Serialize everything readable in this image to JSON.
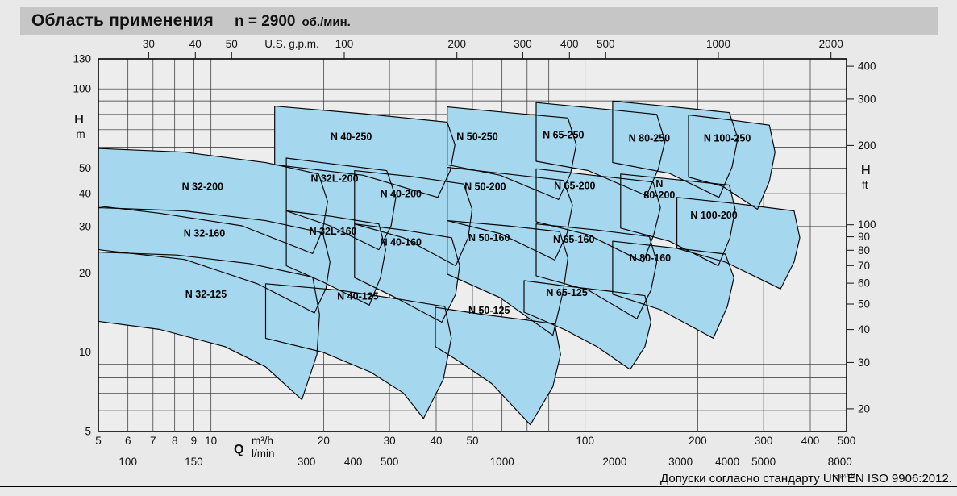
{
  "title": {
    "main": "Область применения",
    "speed": "n = 2900",
    "speed_unit": "об./мин."
  },
  "footer": {
    "note": "Допуски согласно стандарту UNI EN ISO 9906:2012.",
    "code": "72.844.N"
  },
  "chart_data": {
    "type": "area",
    "title": "Область применения n = 2900 об./мин.",
    "description": "Pump application range chart: head H versus flow Q, log-log scales, 22 overlapping pump model regions",
    "speed_rpm": 2900,
    "region_fill": "#a5d7ee",
    "grid_color": "#2e2e2e",
    "x_axis_bottom_primary": {
      "symbol": "Q",
      "unit": "m³/h",
      "scale": "log",
      "range": [
        5,
        500
      ],
      "ticks": [
        5,
        6,
        7,
        8,
        9,
        10,
        20,
        30,
        40,
        50,
        100,
        200,
        300,
        400,
        500
      ]
    },
    "x_axis_bottom_secondary": {
      "unit": "l/min",
      "ticks": [
        100,
        150,
        300,
        400,
        500,
        1000,
        2000,
        3000,
        4000,
        5000,
        8000
      ]
    },
    "x_axis_top": {
      "unit": "U.S. g.p.m.",
      "ticks": [
        30,
        40,
        50,
        100,
        200,
        300,
        400,
        500,
        1000,
        2000
      ]
    },
    "y_axis_left": {
      "symbol": "H",
      "unit": "m",
      "scale": "log",
      "range": [
        5,
        130
      ],
      "ticks": [
        130,
        100,
        50,
        40,
        30,
        20,
        10,
        5
      ]
    },
    "y_axis_right": {
      "symbol": "H",
      "unit": "ft",
      "ticks": [
        400,
        300,
        200,
        100,
        90,
        80,
        70,
        60,
        50,
        40,
        30,
        20
      ]
    },
    "grid": {
      "x_lines": [
        5,
        6,
        7,
        8,
        9,
        10,
        20,
        30,
        40,
        50,
        60,
        70,
        80,
        90,
        100,
        200,
        300,
        400,
        500
      ],
      "y_lines": [
        5,
        6,
        7,
        8,
        9,
        10,
        20,
        30,
        40,
        50,
        60,
        70,
        80,
        90,
        100,
        130
      ]
    },
    "regions": [
      {
        "name": "N 40-250",
        "label": [
          23.7,
          65.8
        ],
        "points": [
          [
            14.8,
            86
          ],
          [
            25.5,
            80.5
          ],
          [
            42.8,
            74.8
          ],
          [
            44.9,
            61.4
          ],
          [
            43.6,
            48.9
          ],
          [
            40.4,
            38.7
          ],
          [
            25.5,
            47
          ],
          [
            14.8,
            51.5
          ]
        ]
      },
      {
        "name": "N 50-250",
        "label": [
          51.5,
          65.8
        ],
        "points": [
          [
            42.8,
            85.4
          ],
          [
            62,
            81.3
          ],
          [
            90,
            77.5
          ],
          [
            94.7,
            61.4
          ],
          [
            91.5,
            47.8
          ],
          [
            85,
            38
          ],
          [
            59.3,
            47
          ],
          [
            42.8,
            51.5
          ]
        ]
      },
      {
        "name": "N 65-250",
        "label": [
          87.5,
          66.8
        ],
        "points": [
          [
            74,
            88.7
          ],
          [
            107.5,
            84.3
          ],
          [
            155.5,
            80
          ],
          [
            163.5,
            63.2
          ],
          [
            157,
            49.7
          ],
          [
            146,
            39.3
          ],
          [
            102,
            48.9
          ],
          [
            74,
            53.1
          ]
        ]
      },
      {
        "name": "N 80-250",
        "label": [
          148.5,
          64.9
        ],
        "points": [
          [
            118.5,
            89.9
          ],
          [
            172,
            85.4
          ],
          [
            243,
            81.3
          ],
          [
            256,
            64.9
          ],
          [
            247,
            50.4
          ],
          [
            228,
            38.7
          ],
          [
            168,
            47.8
          ],
          [
            118.5,
            52.5
          ]
        ]
      },
      {
        "name": "N 100-250",
        "label": [
          240,
          64.9
        ],
        "points": [
          [
            189,
            79.6
          ],
          [
            243,
            76.3
          ],
          [
            311,
            72.8
          ],
          [
            322,
            57.5
          ],
          [
            311,
            44.6
          ],
          [
            289,
            34.9
          ],
          [
            233,
            42.7
          ],
          [
            189,
            46.2
          ]
        ]
      },
      {
        "name": "N 32-200",
        "label": [
          9.5,
          42.5
        ],
        "points": [
          [
            5,
            59.4
          ],
          [
            8.5,
            57.5
          ],
          [
            14,
            52.5
          ],
          [
            19.4,
            47.5
          ],
          [
            20.5,
            37.4
          ],
          [
            19.9,
            29.2
          ],
          [
            18.7,
            23.7
          ],
          [
            12.1,
            30.2
          ],
          [
            7.3,
            33.7
          ],
          [
            5,
            35.9
          ]
        ]
      },
      {
        "name": "N 32L-200",
        "label": [
          21.4,
          45.6
        ],
        "points": [
          [
            15.9,
            54.6
          ],
          [
            22,
            51.5
          ],
          [
            29.5,
            48.9
          ],
          [
            31.2,
            38.7
          ],
          [
            30.3,
            30.2
          ],
          [
            28.1,
            24.5
          ],
          [
            20.8,
            30.2
          ],
          [
            15.9,
            34.4
          ]
        ]
      },
      {
        "name": "N 40-200",
        "label": [
          32.2,
          39.9
        ],
        "points": [
          [
            24.2,
            48.9
          ],
          [
            34.3,
            46.5
          ],
          [
            47.4,
            43.5
          ],
          [
            49.9,
            34.9
          ],
          [
            48.7,
            27.2
          ],
          [
            45.1,
            21.3
          ],
          [
            32.7,
            27.2
          ],
          [
            24.2,
            30.7
          ]
        ]
      },
      {
        "name": "N 50-200",
        "label": [
          54.1,
          42.5
        ],
        "points": [
          [
            42.8,
            50.4
          ],
          [
            62,
            47.5
          ],
          [
            87.5,
            44.9
          ],
          [
            92.5,
            36.2
          ],
          [
            89.4,
            28.2
          ],
          [
            83,
            22.4
          ],
          [
            59.3,
            28.2
          ],
          [
            42.8,
            31.6
          ]
        ]
      },
      {
        "name": "N 65-200",
        "label": [
          93.8,
          42.8
        ],
        "points": [
          [
            74,
            49.7
          ],
          [
            107.5,
            46.8
          ],
          [
            152,
            44.3
          ],
          [
            159,
            35.4
          ],
          [
            152.6,
            27.9
          ],
          [
            143,
            22
          ],
          [
            102,
            27.9
          ],
          [
            74,
            31.3
          ]
        ]
      },
      {
        "name": "N 80-200",
        "label": [
          158,
          41.2
        ],
        "two_line": true,
        "points": [
          [
            124.5,
            47.5
          ],
          [
            176,
            45.2
          ],
          [
            243,
            43.1
          ],
          [
            252,
            34.9
          ],
          [
            244,
            27.2
          ],
          [
            227,
            21.3
          ],
          [
            168,
            26.4
          ],
          [
            124.5,
            29.6
          ]
        ]
      },
      {
        "name": "N 100-200",
        "label": [
          221,
          33.1
        ],
        "points": [
          [
            176,
            38.7
          ],
          [
            256,
            36.6
          ],
          [
            362,
            34.4
          ],
          [
            375,
            27.2
          ],
          [
            362,
            22
          ],
          [
            333,
            17.4
          ],
          [
            237,
            22
          ],
          [
            176,
            24.8
          ]
        ]
      },
      {
        "name": "N 32-160",
        "label": [
          9.6,
          28.2
        ],
        "points": [
          [
            5,
            35.4
          ],
          [
            8.5,
            34.4
          ],
          [
            14,
            31.6
          ],
          [
            19.9,
            28.4
          ],
          [
            20.8,
            22
          ],
          [
            20.3,
            17.5
          ],
          [
            18.9,
            14.1
          ],
          [
            13.3,
            18.2
          ],
          [
            8.5,
            22.5
          ],
          [
            5,
            24.5
          ]
        ]
      },
      {
        "name": "N 32L-160",
        "label": [
          21.2,
          28.7
        ],
        "points": [
          [
            15.9,
            34.4
          ],
          [
            21,
            32.8
          ],
          [
            28.1,
            30.7
          ],
          [
            29.3,
            24.5
          ],
          [
            28.4,
            19.2
          ],
          [
            26.5,
            15.1
          ],
          [
            19.9,
            18.5
          ],
          [
            15.9,
            21.3
          ]
        ]
      },
      {
        "name": "N 40-160",
        "label": [
          32.2,
          26.1
        ],
        "points": [
          [
            24.2,
            30.7
          ],
          [
            32.7,
            29.1
          ],
          [
            44,
            27.2
          ],
          [
            46.2,
            21.3
          ],
          [
            45.1,
            16.6
          ],
          [
            41.4,
            13
          ],
          [
            31.2,
            16.1
          ],
          [
            24.2,
            19.2
          ]
        ]
      },
      {
        "name": "N 50-160",
        "label": [
          55.4,
          27.2
        ],
        "points": [
          [
            42.8,
            31.6
          ],
          [
            62,
            30.2
          ],
          [
            85.5,
            28.7
          ],
          [
            90,
            22.8
          ],
          [
            87.5,
            17.2
          ],
          [
            82,
            11.6
          ],
          [
            59.3,
            16.1
          ],
          [
            42.8,
            19.8
          ]
        ]
      },
      {
        "name": "N 65-160",
        "label": [
          93.3,
          26.8
        ],
        "points": [
          [
            74,
            30.7
          ],
          [
            107.5,
            29.1
          ],
          [
            148.5,
            27.5
          ],
          [
            155.5,
            22
          ],
          [
            150,
            17.2
          ],
          [
            137.5,
            13.4
          ],
          [
            102,
            17.2
          ],
          [
            74,
            19.5
          ]
        ]
      },
      {
        "name": "N 80-160",
        "label": [
          149.3,
          22.8
        ],
        "points": [
          [
            118.5,
            26.4
          ],
          [
            168,
            25
          ],
          [
            237,
            23.6
          ],
          [
            250,
            19.2
          ],
          [
            240,
            14.9
          ],
          [
            220,
            11.3
          ],
          [
            159,
            14.5
          ],
          [
            118.5,
            16.6
          ]
        ]
      },
      {
        "name": "N 32-125",
        "label": [
          9.7,
          16.6
        ],
        "points": [
          [
            5,
            24
          ],
          [
            8.1,
            23.4
          ],
          [
            12.7,
            21.7
          ],
          [
            18.7,
            19.3
          ],
          [
            19.5,
            13.9
          ],
          [
            19.2,
            9.8
          ],
          [
            17.5,
            6.6
          ],
          [
            14,
            8.8
          ],
          [
            10.9,
            10.5
          ],
          [
            7.3,
            12.2
          ],
          [
            5,
            13.1
          ]
        ]
      },
      {
        "name": "N 40-125",
        "label": [
          24.7,
          16.3
        ],
        "points": [
          [
            14,
            18.2
          ],
          [
            22,
            17.2
          ],
          [
            32.7,
            15.8
          ],
          [
            42.2,
            14.9
          ],
          [
            43.9,
            11.3
          ],
          [
            41.8,
            7.9
          ],
          [
            37,
            5.6
          ],
          [
            32.7,
            7
          ],
          [
            26.7,
            8.4
          ],
          [
            19.9,
            10
          ],
          [
            14,
            11.3
          ]
        ]
      },
      {
        "name": "N 50-125",
        "label": [
          55.4,
          14.4
        ],
        "points": [
          [
            39.8,
            14.8
          ],
          [
            53.6,
            13.9
          ],
          [
            68.7,
            13.3
          ],
          [
            83,
            12.8
          ],
          [
            86,
            9.8
          ],
          [
            82,
            7.4
          ],
          [
            71.4,
            5.3
          ],
          [
            56.3,
            7.6
          ],
          [
            46.2,
            9.2
          ],
          [
            39.8,
            10.5
          ]
        ]
      },
      {
        "name": "N 65-125",
        "label": [
          89.4,
          16.8
        ],
        "points": [
          [
            68.7,
            18.7
          ],
          [
            92.5,
            17.7
          ],
          [
            118.5,
            17
          ],
          [
            144.5,
            16.4
          ],
          [
            150,
            13
          ],
          [
            144.5,
            10.5
          ],
          [
            132,
            8.6
          ],
          [
            107.5,
            10.5
          ],
          [
            88,
            12.2
          ],
          [
            68.7,
            14.2
          ]
        ]
      }
    ]
  }
}
